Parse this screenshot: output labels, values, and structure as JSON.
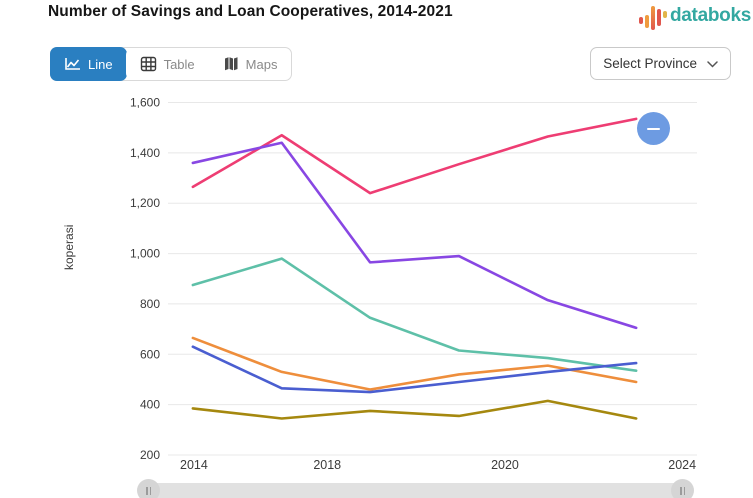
{
  "header": {
    "title": "Number of Savings and Loan Cooperatives, 2014-2021",
    "brand_name": "databoks",
    "brand_color": "#33a8a1"
  },
  "toolbar": {
    "tabs": [
      {
        "label": "Line",
        "icon": "line-chart-icon",
        "active": true
      },
      {
        "label": "Table",
        "icon": "table-icon",
        "active": false
      },
      {
        "label": "Maps",
        "icon": "map-icon",
        "active": false
      }
    ],
    "active_tab_color": "#2a7fc1",
    "province_selector": {
      "label": "Select Province",
      "icon": "chevron-down-icon"
    }
  },
  "controls": {
    "zoom_out_icon": "minus-icon",
    "zoom_out_color": "#6d9be2",
    "scrollbar": {
      "left_handle_icon": "drag-handle-icon",
      "right_handle_icon": "drag-handle-icon"
    }
  },
  "chart_data": {
    "type": "line",
    "title": "Number of Savings and Loan Cooperatives, 2014-2021",
    "xlabel": "",
    "ylabel": "koperasi",
    "ylim": [
      200,
      1600
    ],
    "y_ticks": [
      200,
      400,
      600,
      800,
      1000,
      1200,
      1400,
      1600
    ],
    "y_tick_labels": [
      "200",
      "400",
      "600",
      "800",
      "1,000",
      "1,200",
      "1,400",
      "1,600"
    ],
    "grid": true,
    "legend_position": "none",
    "x_ticks": [
      {
        "label": "2014",
        "pos": 0.049
      },
      {
        "label": "2018",
        "pos": 0.301
      },
      {
        "label": "2020",
        "pos": 0.637
      },
      {
        "label": "2024",
        "pos": 0.972
      }
    ],
    "point_positions": [
      0.047,
      0.215,
      0.382,
      0.55,
      0.718,
      0.885
    ],
    "series": [
      {
        "name": "series-pink",
        "color": "#ee3d73",
        "values": [
          1265,
          1470,
          1240,
          1355,
          1465,
          1535
        ]
      },
      {
        "name": "series-purple",
        "color": "#8847e3",
        "values": [
          1360,
          1440,
          965,
          990,
          815,
          705
        ]
      },
      {
        "name": "series-teal",
        "color": "#5ec0a8",
        "values": [
          875,
          980,
          745,
          615,
          585,
          535
        ]
      },
      {
        "name": "series-orange",
        "color": "#ee8e3c",
        "values": [
          665,
          530,
          460,
          520,
          555,
          490
        ]
      },
      {
        "name": "series-blue",
        "color": "#4a5ed0",
        "values": [
          630,
          465,
          450,
          490,
          530,
          565
        ]
      },
      {
        "name": "series-olive",
        "color": "#a5880f",
        "values": [
          385,
          345,
          375,
          355,
          415,
          345
        ]
      }
    ],
    "axis_text_color": "#3c3c3c",
    "grid_color": "#e8e8e8"
  }
}
